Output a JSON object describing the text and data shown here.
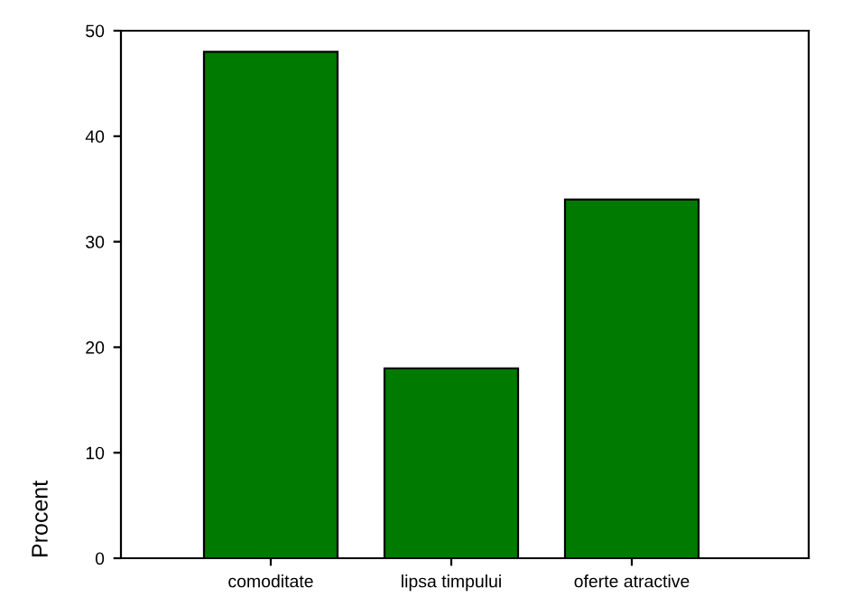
{
  "chart_data": {
    "type": "bar",
    "categories": [
      "comoditate",
      "lipsa timpului",
      "oferte atractive"
    ],
    "values": [
      48,
      18,
      34
    ],
    "color": "#007a00",
    "ylabel": "Procent",
    "ylim": [
      0,
      50
    ],
    "yticks": [
      0,
      10,
      20,
      30,
      40,
      50
    ],
    "grid": false,
    "legend": false
  }
}
